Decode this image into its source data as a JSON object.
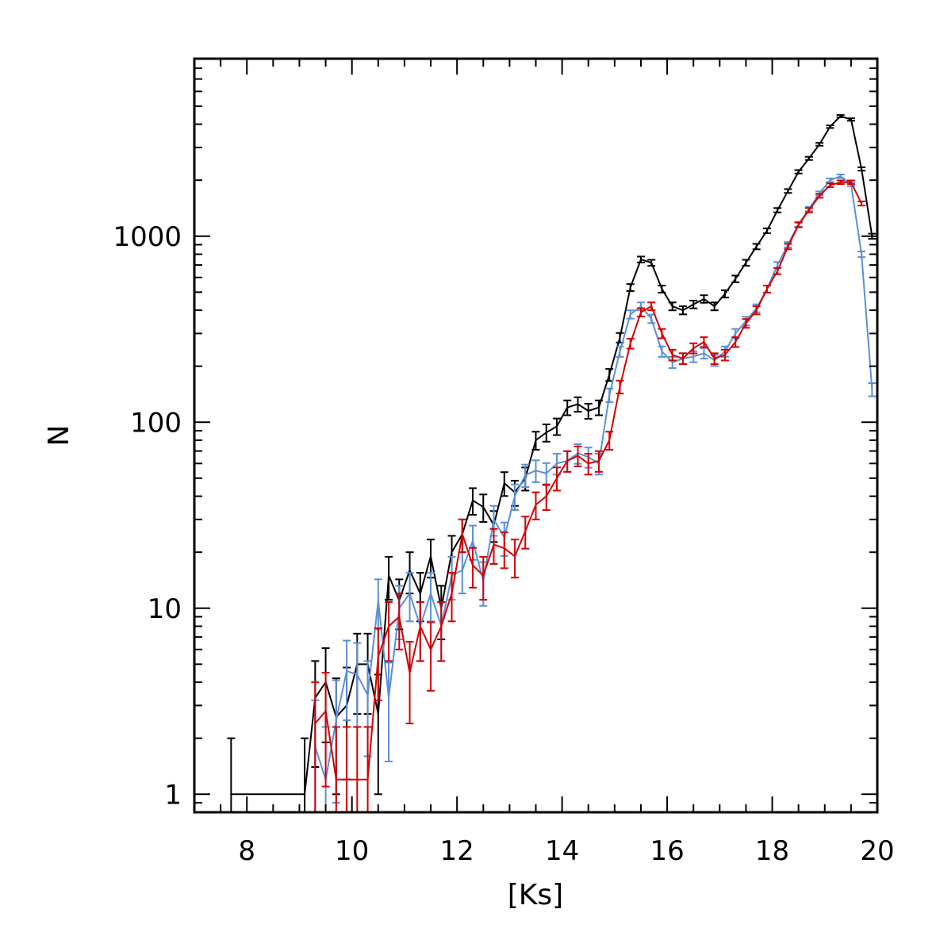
{
  "chart_data": {
    "type": "line",
    "xlabel": "[Ks]",
    "ylabel": "N",
    "xlim": [
      7,
      20
    ],
    "ylim": [
      0.8,
      9000
    ],
    "yscale": "log",
    "xticks": [
      8,
      10,
      12,
      14,
      16,
      18,
      20
    ],
    "yticks": [
      1,
      10,
      100,
      1000
    ],
    "xtick_labels": [
      "8",
      "10",
      "12",
      "14",
      "16",
      "18",
      "20"
    ],
    "ytick_labels": [
      "1",
      "10",
      "100",
      "1000"
    ],
    "grid": false,
    "legend": "none",
    "series": [
      {
        "color": "#000000",
        "x": [
          7.7,
          9.1,
          9.3,
          9.5,
          9.7,
          9.9,
          10.1,
          10.3,
          10.5,
          10.7,
          10.9,
          11.1,
          11.3,
          11.5,
          11.7,
          11.9,
          12.1,
          12.3,
          12.5,
          12.7,
          12.9,
          13.1,
          13.3,
          13.5,
          13.7,
          13.9,
          14.1,
          14.3,
          14.5,
          14.7,
          14.9,
          15.1,
          15.3,
          15.5,
          15.7,
          15.9,
          16.1,
          16.3,
          16.5,
          16.7,
          16.9,
          17.1,
          17.3,
          17.5,
          17.7,
          17.9,
          18.1,
          18.3,
          18.5,
          18.7,
          18.9,
          19.1,
          19.3,
          19.5,
          19.7,
          19.9
        ],
        "values": [
          1,
          1,
          3.3,
          4,
          2.6,
          3,
          5,
          5,
          2.7,
          15,
          11,
          16,
          12,
          19,
          10,
          20,
          25,
          38,
          35,
          28,
          47,
          42,
          50,
          80,
          88,
          95,
          120,
          125,
          115,
          120,
          180,
          285,
          530,
          750,
          720,
          520,
          420,
          400,
          430,
          460,
          420,
          490,
          590,
          720,
          880,
          1070,
          1380,
          1750,
          2220,
          2620,
          3120,
          3880,
          4420,
          4240,
          2300,
          1000
        ],
        "err": [
          1,
          1,
          1.9,
          2.1,
          1.6,
          1.8,
          2.3,
          2.3,
          1.7,
          3.9,
          3.3,
          4,
          3.5,
          4.4,
          3.2,
          4.5,
          5,
          6.2,
          5.9,
          5.3,
          6.9,
          6.5,
          7.1,
          8.9,
          9.4,
          9.7,
          11,
          11.2,
          10.7,
          11,
          13.4,
          16.9,
          23,
          27.4,
          26.8,
          22.8,
          20.5,
          20,
          20.7,
          21.4,
          20.5,
          22.1,
          24.3,
          26.8,
          29.7,
          32.7,
          37.1,
          41.8,
          47.1,
          51.2,
          55.9,
          62.3,
          66.5,
          65.1,
          48,
          31.6
        ]
      },
      {
        "color": "#5b8fd8",
        "x": [
          9.3,
          9.5,
          9.7,
          9.9,
          10.1,
          10.3,
          10.5,
          10.7,
          10.9,
          11.1,
          11.3,
          11.5,
          11.7,
          11.9,
          12.1,
          12.3,
          12.5,
          12.7,
          12.9,
          13.1,
          13.3,
          13.5,
          13.7,
          13.9,
          14.1,
          14.3,
          14.5,
          14.7,
          14.9,
          15.1,
          15.3,
          15.5,
          15.7,
          15.9,
          16.1,
          16.3,
          16.5,
          16.7,
          16.9,
          17.1,
          17.3,
          17.5,
          17.7,
          17.9,
          18.1,
          18.3,
          18.5,
          18.7,
          18.9,
          19.1,
          19.3,
          19.5,
          19.7,
          19.9
        ],
        "values": [
          1.8,
          1.2,
          2.5,
          4.6,
          4.4,
          3.4,
          11,
          3.3,
          10,
          12,
          8,
          12,
          8,
          15,
          16,
          23,
          14,
          30,
          24,
          40,
          52,
          55,
          53,
          60,
          62,
          68,
          65,
          60,
          140,
          240,
          380,
          420,
          360,
          240,
          210,
          220,
          225,
          235,
          215,
          240,
          300,
          350,
          410,
          520,
          700,
          900,
          1160,
          1400,
          1700,
          2000,
          2100,
          1900,
          800,
          150
        ],
        "err": [
          1.4,
          1.1,
          1.6,
          2.1,
          2.1,
          1.8,
          3.3,
          1.8,
          3.2,
          3.5,
          2.8,
          3.5,
          2.8,
          3.9,
          4,
          4.8,
          3.7,
          5.5,
          4.9,
          6.3,
          7.2,
          7.4,
          7.3,
          7.7,
          7.9,
          8.2,
          8.1,
          7.7,
          11.8,
          15.5,
          19.5,
          20.5,
          19,
          15.5,
          14.5,
          14.8,
          15,
          15.3,
          14.7,
          15.5,
          17.3,
          18.7,
          20.2,
          22.8,
          26.5,
          30,
          34,
          37.4,
          41.2,
          44.7,
          45.8,
          43.6,
          28.3,
          12.2
        ]
      },
      {
        "color": "#d40000",
        "x": [
          9.3,
          9.5,
          9.7,
          9.9,
          10.1,
          10.3,
          10.5,
          10.7,
          10.9,
          11.1,
          11.3,
          11.5,
          11.7,
          11.9,
          12.1,
          12.3,
          12.5,
          12.7,
          12.9,
          13.1,
          13.3,
          13.5,
          13.7,
          13.9,
          14.1,
          14.3,
          14.5,
          14.7,
          14.9,
          15.1,
          15.3,
          15.5,
          15.7,
          15.9,
          16.1,
          16.3,
          16.5,
          16.7,
          16.9,
          17.1,
          17.3,
          17.5,
          17.7,
          17.9,
          18.1,
          18.3,
          18.5,
          18.7,
          18.9,
          19.1,
          19.3,
          19.5,
          19.7
        ],
        "values": [
          2.4,
          2.8,
          1.2,
          1.2,
          1.2,
          1.2,
          5.5,
          8,
          9,
          4.5,
          8,
          6,
          8,
          12,
          25,
          17,
          15,
          22,
          21,
          19,
          26,
          36,
          40,
          50,
          62,
          66,
          60,
          62,
          80,
          155,
          265,
          390,
          420,
          300,
          230,
          220,
          250,
          270,
          220,
          230,
          270,
          340,
          400,
          520,
          650,
          880,
          1150,
          1380,
          1650,
          1880,
          1950,
          1950,
          1500
        ],
        "err": [
          1.6,
          1.7,
          1.1,
          1.1,
          1.1,
          1.1,
          2.3,
          2.8,
          3,
          2.1,
          2.8,
          2.4,
          2.8,
          3.5,
          5,
          4.1,
          3.9,
          4.7,
          4.6,
          4.4,
          5.1,
          6,
          6.3,
          7.1,
          7.9,
          8.1,
          7.7,
          7.9,
          8.9,
          12.4,
          16.3,
          19.7,
          20.5,
          17.3,
          15.2,
          14.8,
          15.8,
          16.4,
          14.8,
          15.2,
          16.4,
          18.4,
          20,
          22.8,
          25.5,
          29.7,
          33.9,
          37.1,
          40.6,
          43.4,
          44.2,
          44.2,
          38.7
        ]
      }
    ]
  }
}
